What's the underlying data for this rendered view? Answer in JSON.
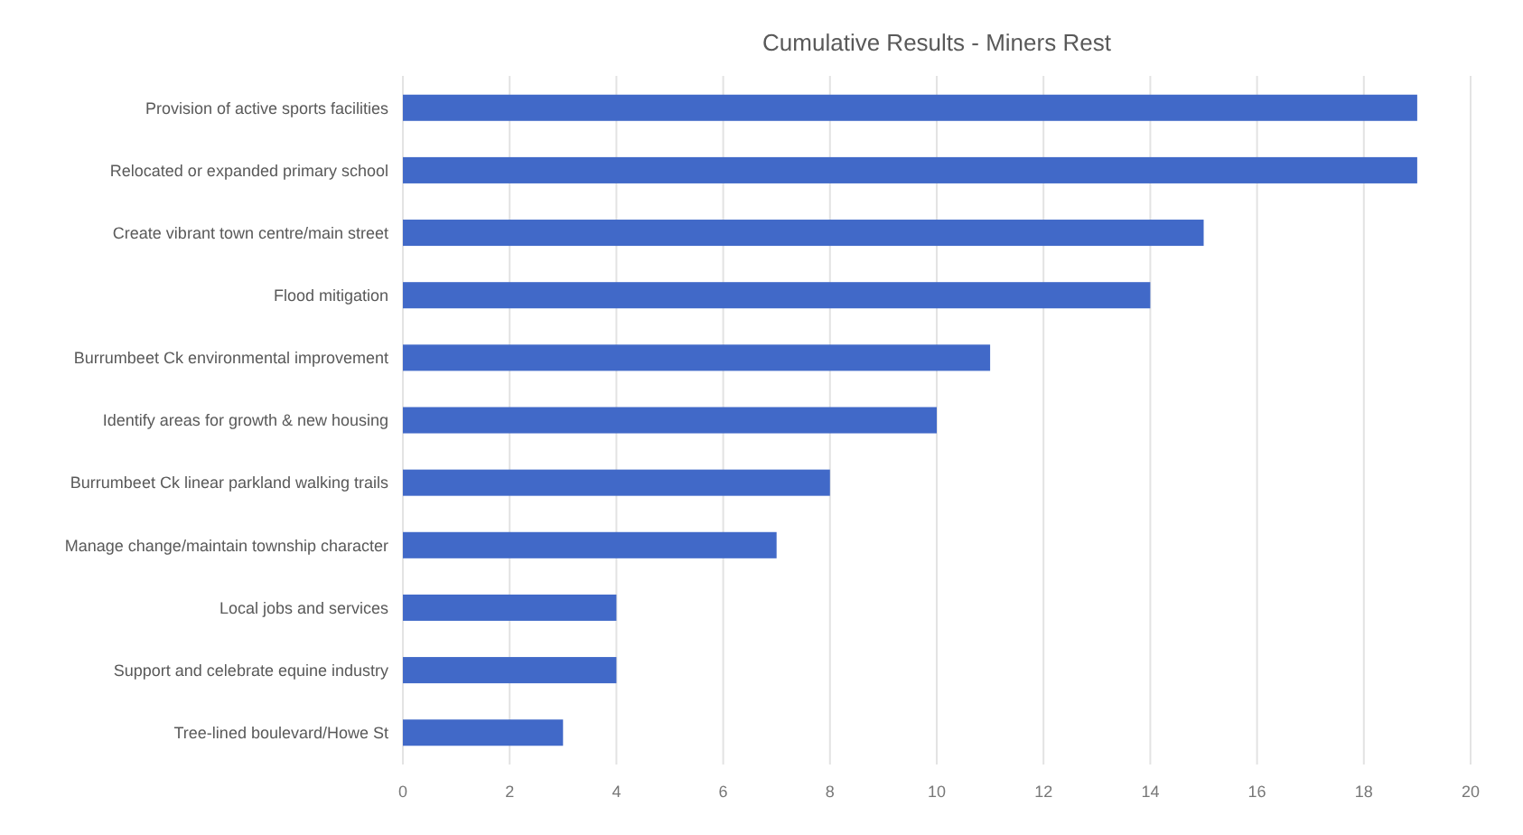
{
  "chart_data": {
    "type": "bar",
    "orientation": "horizontal",
    "title": "Cumulative Results - Miners Rest",
    "categories": [
      "Provision of active sports facilities",
      "Relocated or expanded primary school",
      "Create vibrant town centre/main street",
      "Flood mitigation",
      "Burrumbeet Ck environmental improvement",
      "Identify areas for growth & new housing",
      "Burrumbeet Ck linear parkland walking trails",
      "Manage change/maintain township character",
      "Local jobs and services",
      "Support and celebrate equine industry",
      "Tree-lined boulevard/Howe St"
    ],
    "values": [
      19,
      19,
      15,
      14,
      11,
      10,
      8,
      7,
      4,
      4,
      3
    ],
    "color": "#4169c8",
    "xlim": [
      0,
      20
    ],
    "xticks": [
      0,
      2,
      4,
      6,
      8,
      10,
      12,
      14,
      16,
      18,
      20
    ],
    "grid": "x"
  }
}
